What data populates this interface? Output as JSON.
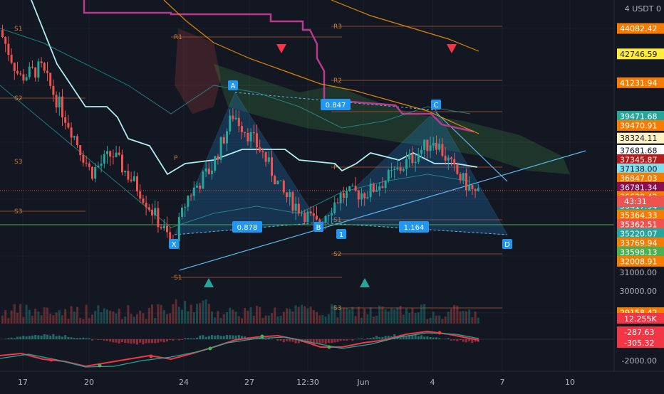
{
  "header": {
    "currency_label": "4  USDT 0"
  },
  "chart_data": {
    "type": "candlestick",
    "title": "",
    "price_axis": {
      "min": 28000,
      "max": 45000,
      "ticks": [
        {
          "value": 31000,
          "label": "31000.00"
        },
        {
          "value": 30000,
          "label": "30000.00"
        }
      ]
    },
    "price_labels": [
      {
        "value": 44082.42,
        "label": "44082.42",
        "color": "#f57c00"
      },
      {
        "value": 42746.59,
        "label": "42746.59",
        "color": "#ffeb3b"
      },
      {
        "value": 41231.94,
        "label": "41231.94",
        "color": "#f57c00"
      },
      {
        "value": 39471.68,
        "label": "39471.68",
        "color": "#26a69a"
      },
      {
        "value": 39470.91,
        "label": "39470.91",
        "color": "#f57c00"
      },
      {
        "value": 38324.11,
        "label": "38324.11",
        "color": "#fff3c4"
      },
      {
        "value": 37681.68,
        "label": "37681.68",
        "color": "#ffffff"
      },
      {
        "value": 37345.87,
        "label": "37345.87",
        "color": "#b71c1c"
      },
      {
        "value": 37138.0,
        "label": "37138.00",
        "color": "#80deea"
      },
      {
        "value": 36847.03,
        "label": "36847.03",
        "color": "#f57c00"
      },
      {
        "value": 36781.34,
        "label": "36781.34",
        "color": "#880e4f"
      },
      {
        "value": 36620.42,
        "label": "36620.42",
        "color": "#f57c00"
      },
      {
        "value": 36417.94,
        "label": "36417.94",
        "color": "#26a69a"
      },
      {
        "value": 35364.33,
        "label": "35364.33",
        "color": "#f57c00"
      },
      {
        "value": 35362.51,
        "label": "35362.51",
        "color": "#ef5350"
      },
      {
        "value": 35220.07,
        "label": "35220.07",
        "color": "#26a69a"
      },
      {
        "value": 33769.94,
        "label": "33769.94",
        "color": "#f57c00"
      },
      {
        "value": 33598.13,
        "label": "33598.13",
        "color": "#4caf50"
      },
      {
        "value": 32008.91,
        "label": "32008.91",
        "color": "#f57c00"
      },
      {
        "value": 29158.42,
        "label": "29158.42",
        "color": "#f57c00"
      }
    ],
    "countdown": "43:31",
    "volume_label": "12.255K",
    "macd": {
      "labels": [
        {
          "label": "-287.63",
          "color": "#f23645"
        },
        {
          "label": "-305.32",
          "color": "#f23645"
        }
      ],
      "ticks": [
        {
          "value": -2000,
          "label": "-2000.00"
        }
      ]
    },
    "time_axis": [
      "17",
      "20",
      "24",
      "27",
      "12:30",
      "Jun",
      "4",
      "7",
      "10"
    ],
    "pivots": [
      "R1",
      "R2",
      "R3",
      "S1",
      "S2",
      "S3",
      "S1",
      "S2",
      "S3",
      "S1",
      "S2",
      "S3",
      "P",
      "P"
    ],
    "pattern": {
      "points": [
        {
          "name": "X",
          "price": 32600
        },
        {
          "name": "A",
          "price": 39600
        },
        {
          "name": "B",
          "price": 33700
        },
        {
          "name": "C",
          "price": 38300
        },
        {
          "name": "D",
          "price": 33300
        }
      ],
      "ratios": [
        "0.847",
        "0.878",
        "1.164"
      ],
      "marker": "1"
    }
  }
}
